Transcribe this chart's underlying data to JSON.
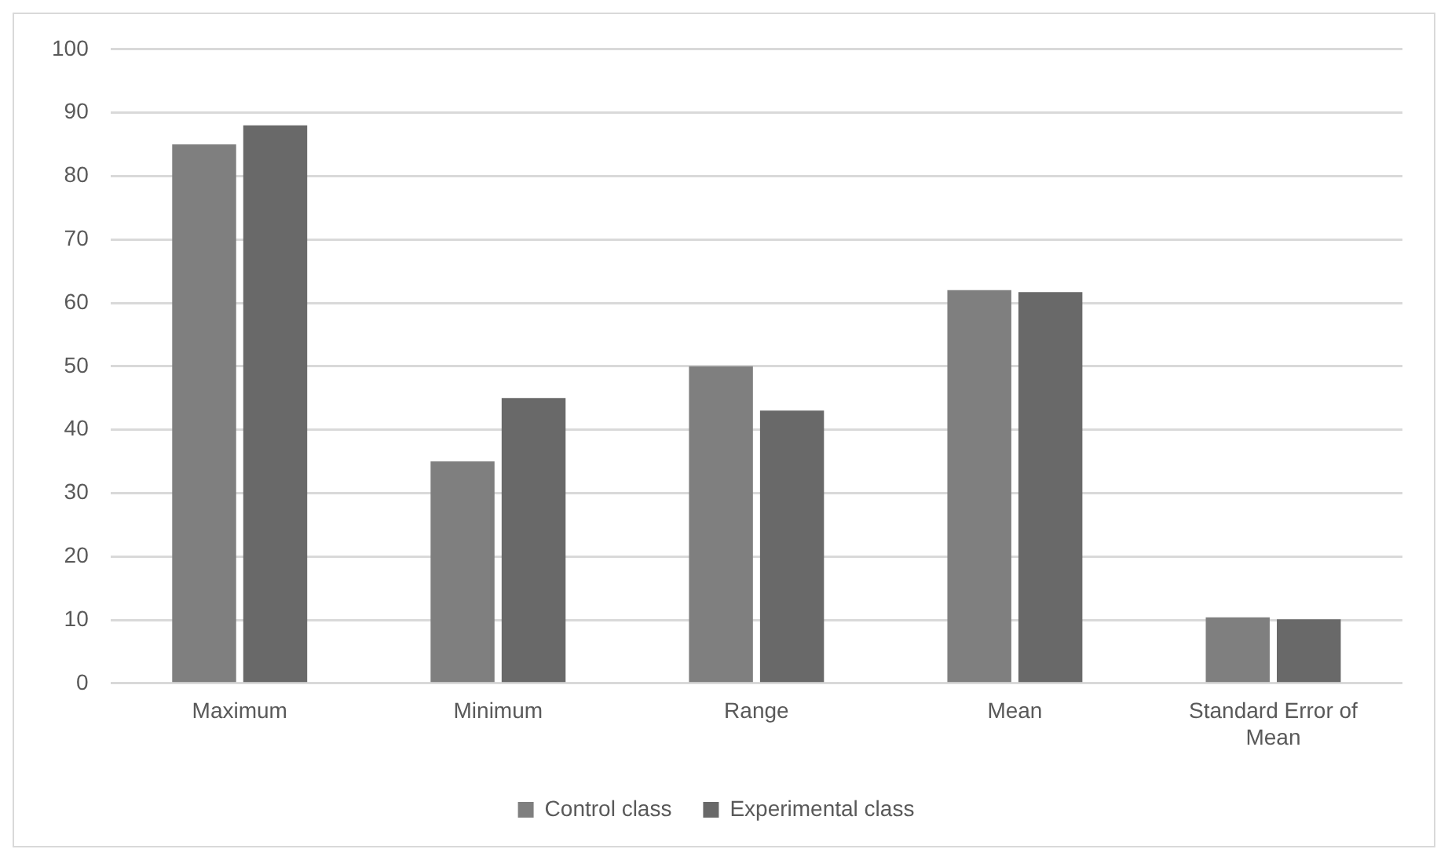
{
  "chart_data": {
    "type": "bar",
    "categories": [
      "Maximum",
      "Minimum",
      "Range",
      "Mean",
      "Standard Error of Mean"
    ],
    "series": [
      {
        "name": "Control class",
        "color": "#7f7f7f",
        "values": [
          85,
          35,
          50,
          62,
          10.4
        ]
      },
      {
        "name": "Experimental class",
        "color": "#696969",
        "values": [
          88,
          45,
          43,
          61.7,
          10.1
        ]
      }
    ],
    "ylim": [
      0,
      100
    ],
    "yticks": [
      0,
      10,
      20,
      30,
      40,
      50,
      60,
      70,
      80,
      90,
      100
    ],
    "grid": "y",
    "legend": "bottom"
  }
}
